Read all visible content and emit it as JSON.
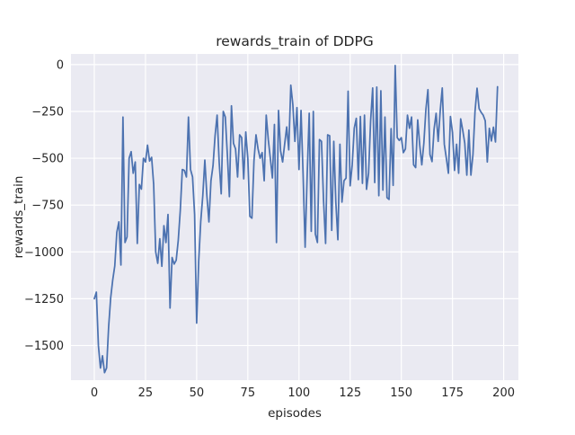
{
  "figure": {
    "background": "#ffffff",
    "plot_background": "#eaeaf2",
    "grid_color": "#ffffff",
    "text_color": "#262626"
  },
  "chart_data": {
    "type": "line",
    "title": "rewards_train of DDPG",
    "xlabel": "episodes",
    "ylabel": "rewards_train",
    "legend": "none",
    "grid": true,
    "line_color": "#4C72B0",
    "line_width": 1.75,
    "x_ticks": [
      0,
      25,
      50,
      75,
      100,
      125,
      150,
      175,
      200
    ],
    "x_tick_labels": [
      "0",
      "25",
      "50",
      "75",
      "100",
      "125",
      "150",
      "175",
      "200"
    ],
    "y_ticks": [
      0,
      -250,
      -500,
      -750,
      -1000,
      -1250,
      -1500
    ],
    "y_tick_labels": [
      "0",
      "−250",
      "−500",
      "−750",
      "−1000",
      "−1250",
      "−1500"
    ],
    "xlim": [
      -11.4,
      207.2
    ],
    "ylim": [
      -1685,
      57
    ],
    "x_start": 0,
    "x_step": 1,
    "series": [
      {
        "name": "rewards_train",
        "values": [
          -1250,
          -1215,
          -1500,
          -1620,
          -1555,
          -1645,
          -1620,
          -1400,
          -1245,
          -1150,
          -1075,
          -895,
          -840,
          -1070,
          -280,
          -950,
          -920,
          -500,
          -465,
          -580,
          -520,
          -955,
          -640,
          -665,
          -500,
          -520,
          -430,
          -515,
          -495,
          -640,
          -1000,
          -1061,
          -930,
          -1077,
          -860,
          -950,
          -800,
          -1300,
          -1030,
          -1065,
          -1045,
          -940,
          -780,
          -560,
          -565,
          -600,
          -280,
          -560,
          -600,
          -800,
          -1380,
          -1050,
          -838,
          -700,
          -510,
          -700,
          -840,
          -620,
          -540,
          -380,
          -270,
          -520,
          -690,
          -250,
          -280,
          -480,
          -705,
          -220,
          -420,
          -450,
          -600,
          -375,
          -390,
          -610,
          -360,
          -500,
          -810,
          -820,
          -515,
          -375,
          -450,
          -500,
          -470,
          -620,
          -270,
          -400,
          -500,
          -605,
          -320,
          -950,
          -245,
          -460,
          -520,
          -424,
          -333,
          -455,
          -110,
          -214,
          -410,
          -230,
          -560,
          -245,
          -583,
          -975,
          -590,
          -260,
          -890,
          -250,
          -905,
          -950,
          -400,
          -410,
          -725,
          -955,
          -375,
          -380,
          -885,
          -410,
          -734,
          -935,
          -425,
          -734,
          -620,
          -606,
          -142,
          -647,
          -535,
          -340,
          -287,
          -614,
          -277,
          -634,
          -270,
          -666,
          -580,
          -300,
          -125,
          -630,
          -120,
          -700,
          -140,
          -670,
          -280,
          -710,
          -720,
          -342,
          -645,
          -5,
          -390,
          -405,
          -390,
          -470,
          -450,
          -270,
          -340,
          -280,
          -535,
          -550,
          -295,
          -430,
          -535,
          -420,
          -240,
          -134,
          -480,
          -518,
          -345,
          -260,
          -410,
          -246,
          -125,
          -425,
          -500,
          -580,
          -277,
          -363,
          -565,
          -425,
          -580,
          -290,
          -350,
          -420,
          -590,
          -350,
          -590,
          -480,
          -250,
          -126,
          -235,
          -255,
          -270,
          -300,
          -520,
          -340,
          -408,
          -334,
          -413,
          -118
        ]
      }
    ]
  }
}
